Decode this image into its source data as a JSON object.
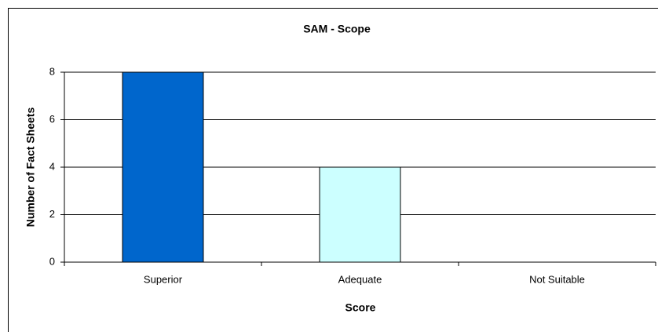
{
  "chart_data": {
    "type": "bar",
    "title": "SAM - Scope",
    "categories": [
      "Superior",
      "Adequate",
      "Not Suitable"
    ],
    "values": [
      8,
      4,
      0
    ],
    "colors": [
      "#0066cc",
      "#ccffff",
      "#ffffcc"
    ],
    "x_label": "Score",
    "y_label": "Number of Fact Sheets",
    "ylim": [
      0,
      8
    ],
    "yticks": [
      0,
      2,
      4,
      6,
      8
    ],
    "grid": true
  }
}
